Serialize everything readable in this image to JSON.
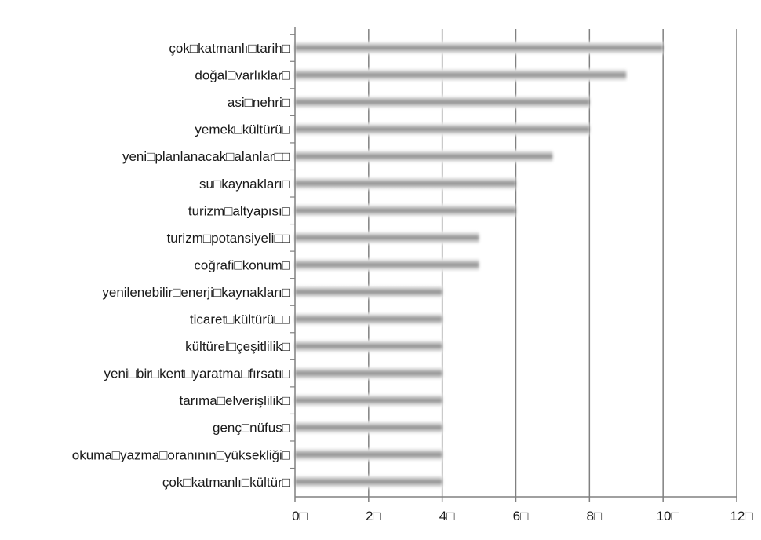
{
  "chart_data": {
    "type": "bar",
    "orientation": "horizontal",
    "title": "",
    "xlabel": "",
    "ylabel": "",
    "categories": [
      "çok□katmanlı□tarih□",
      "doğal□varlıklar□",
      "asi□nehri□",
      "yemek□kültürü□",
      "yeni□planlanacak□alanlar□□",
      "su□kaynakları□",
      "turizm□altyapısı□",
      "turizm□potansiyeli□□",
      "coğrafi□konum□",
      "yenilenebilir□enerji□kaynakları□",
      "ticaret□kültürü□□",
      "kültürel□çeşitlilik□",
      "yeni□bir□kent□yaratma□fırsatı□",
      "tarıma□elverişlilik□",
      "genç□nüfus□",
      "okuma□yazma□oranının□yüksekliği□",
      "çok□katmanlı□kültür□"
    ],
    "values": [
      10,
      9,
      8,
      8,
      7,
      6,
      6,
      5,
      5,
      4,
      4,
      4,
      4,
      4,
      4,
      4,
      4
    ],
    "xlim": [
      0,
      12
    ],
    "xticks": [
      "0□",
      "2□",
      "4□",
      "6□",
      "8□",
      "10□",
      "12□"
    ],
    "grid": true,
    "legend": "none",
    "colors": {
      "bar_core": "#8a8a8a",
      "bar_edge": "#ffffff",
      "gridline": "#808080",
      "axis": "#808080",
      "frame": "#8c8c8c"
    }
  }
}
